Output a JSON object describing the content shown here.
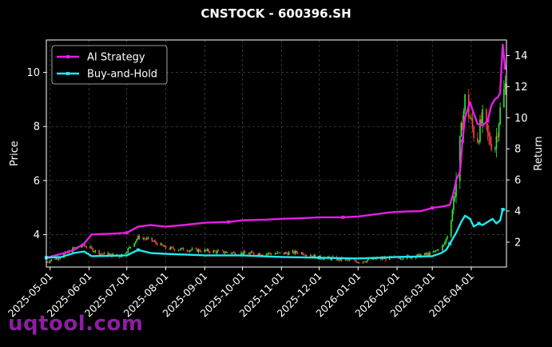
{
  "chart_title": "CNSTOCK - 600396.SH",
  "watermark": "uqtool.com",
  "colors": {
    "background": "#000000",
    "ai_line": "#e51ee5",
    "bh_line": "#1fe9f0",
    "candle_up": "#39e639",
    "candle_down": "#ff4040",
    "grid": "#555555"
  },
  "chart_data": {
    "type": "line",
    "title": "CNSTOCK - 600396.SH",
    "xlabel": "",
    "ylabel_left": "Price",
    "ylabel_right": "Return",
    "grid": true,
    "legend_position": "top-left",
    "x_range": [
      "2025-04-28",
      "2026-04-29"
    ],
    "ylim_left": [
      2.8,
      11.2
    ],
    "ylim_right": [
      0.4,
      15.0
    ],
    "x_ticks": [
      "2025-05-01",
      "2025-06-01",
      "2025-07-01",
      "2025-08-01",
      "2025-09-01",
      "2025-10-01",
      "2025-11-01",
      "2025-12-01",
      "2026-01-01",
      "2026-02-01",
      "2026-03-01",
      "2026-04-01"
    ],
    "y_ticks_left": [
      4,
      6,
      8,
      10
    ],
    "y_ticks_right": [
      2,
      4,
      6,
      8,
      10,
      12,
      14
    ],
    "series": [
      {
        "name": "AI Strategy",
        "axis": "right",
        "x": [
          "2025-04-28",
          "2025-05-10",
          "2025-05-20",
          "2025-05-28",
          "2025-06-03",
          "2025-06-20",
          "2025-07-01",
          "2025-07-10",
          "2025-07-20",
          "2025-08-01",
          "2025-08-15",
          "2025-09-01",
          "2025-09-20",
          "2025-10-01",
          "2025-10-20",
          "2025-11-01",
          "2025-11-20",
          "2025-12-01",
          "2025-12-20",
          "2026-01-01",
          "2026-01-15",
          "2026-01-25",
          "2026-02-01",
          "2026-02-20",
          "2026-03-01",
          "2026-03-10",
          "2026-03-15",
          "2026-03-18",
          "2026-03-20",
          "2026-03-23",
          "2026-03-25",
          "2026-03-27",
          "2026-03-31",
          "2026-04-02",
          "2026-04-06",
          "2026-04-10",
          "2026-04-14",
          "2026-04-17",
          "2026-04-20",
          "2026-04-22",
          "2026-04-24",
          "2026-04-26",
          "2026-04-28"
        ],
        "values": [
          1.0,
          1.25,
          1.5,
          1.9,
          2.5,
          2.55,
          2.6,
          3.0,
          3.1,
          3.0,
          3.1,
          3.25,
          3.3,
          3.4,
          3.45,
          3.5,
          3.55,
          3.6,
          3.6,
          3.65,
          3.8,
          3.9,
          3.95,
          4.0,
          4.2,
          4.3,
          4.4,
          5.2,
          6.0,
          6.5,
          8.5,
          10.0,
          11.0,
          10.5,
          9.6,
          9.5,
          9.8,
          10.8,
          11.2,
          11.3,
          11.6,
          14.7,
          13.2
        ]
      },
      {
        "name": "Buy-and-Hold",
        "axis": "right",
        "x": [
          "2025-04-28",
          "2025-05-10",
          "2025-05-20",
          "2025-05-28",
          "2025-06-03",
          "2025-07-01",
          "2025-07-10",
          "2025-07-20",
          "2025-08-01",
          "2025-09-01",
          "2025-10-01",
          "2025-11-01",
          "2025-12-01",
          "2026-01-01",
          "2026-02-01",
          "2026-03-01",
          "2026-03-08",
          "2026-03-12",
          "2026-03-15",
          "2026-03-20",
          "2026-03-24",
          "2026-03-27",
          "2026-03-31",
          "2026-04-03",
          "2026-04-07",
          "2026-04-10",
          "2026-04-14",
          "2026-04-18",
          "2026-04-21",
          "2026-04-24",
          "2026-04-26",
          "2026-04-28"
        ],
        "values": [
          1.0,
          1.05,
          1.3,
          1.4,
          1.1,
          1.15,
          1.5,
          1.3,
          1.25,
          1.15,
          1.15,
          1.05,
          1.0,
          0.95,
          1.05,
          1.1,
          1.3,
          1.5,
          1.9,
          2.6,
          3.3,
          3.7,
          3.5,
          3.0,
          3.2,
          3.1,
          3.3,
          3.5,
          3.2,
          3.4,
          4.1,
          4.1
        ]
      }
    ],
    "candles": {
      "axis": "left",
      "approx_close": [
        [
          "2025-04-28",
          3.0
        ],
        [
          "2025-05-10",
          3.2
        ],
        [
          "2025-05-20",
          3.5
        ],
        [
          "2025-05-28",
          3.6
        ],
        [
          "2025-06-10",
          3.3
        ],
        [
          "2025-06-25",
          3.2
        ],
        [
          "2025-07-01",
          3.4
        ],
        [
          "2025-07-10",
          3.9
        ],
        [
          "2025-07-20",
          3.8
        ],
        [
          "2025-08-01",
          3.5
        ],
        [
          "2025-08-15",
          3.45
        ],
        [
          "2025-09-01",
          3.4
        ],
        [
          "2025-09-15",
          3.35
        ],
        [
          "2025-10-01",
          3.3
        ],
        [
          "2025-10-15",
          3.3
        ],
        [
          "2025-11-01",
          3.3
        ],
        [
          "2025-11-15",
          3.35
        ],
        [
          "2025-12-01",
          3.15
        ],
        [
          "2025-12-15",
          3.1
        ],
        [
          "2026-01-01",
          3.0
        ],
        [
          "2026-01-15",
          3.1
        ],
        [
          "2026-02-01",
          3.15
        ],
        [
          "2026-02-15",
          3.2
        ],
        [
          "2026-03-01",
          3.3
        ],
        [
          "2026-03-10",
          3.6
        ],
        [
          "2026-03-15",
          4.2
        ],
        [
          "2026-03-20",
          6.0
        ],
        [
          "2026-03-24",
          7.8
        ],
        [
          "2026-03-27",
          9.0
        ],
        [
          "2026-03-31",
          8.3
        ],
        [
          "2026-04-05",
          7.4
        ],
        [
          "2026-04-10",
          8.3
        ],
        [
          "2026-04-15",
          7.5
        ],
        [
          "2026-04-20",
          7.3
        ],
        [
          "2026-04-24",
          8.6
        ],
        [
          "2026-04-28",
          9.5
        ]
      ]
    }
  }
}
